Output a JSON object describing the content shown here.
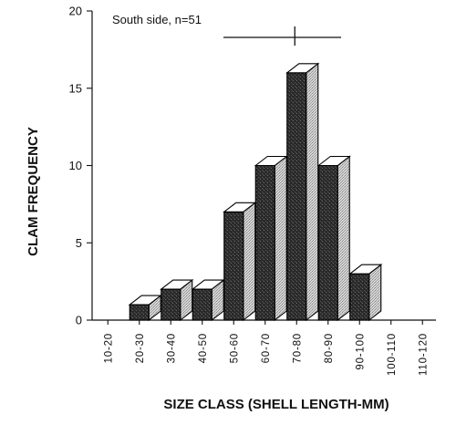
{
  "chart_data": {
    "type": "bar",
    "title": "",
    "annotation": "South side, n=51",
    "xlabel": "SIZE CLASS (SHELL LENGTH-MM)",
    "ylabel": "CLAM FREQUENCY",
    "categories": [
      "10-20",
      "20-30",
      "30-40",
      "40-50",
      "50-60",
      "60-70",
      "70-80",
      "80-90",
      "90-100",
      "100-110",
      "110-120"
    ],
    "values": [
      0,
      1,
      2,
      2,
      7,
      10,
      16,
      10,
      3,
      0,
      0
    ],
    "ylim": [
      0,
      20
    ],
    "yticks": [
      0,
      5,
      10,
      15,
      20
    ],
    "grid": false,
    "bar_style": "3d-stippled",
    "range_marker": {
      "from": "50-60",
      "to": "80-90",
      "center": "70-80"
    },
    "colors": {
      "bar_front": "#2a2a2a",
      "bar_side": "#c8c8c8",
      "bar_top": "#ffffff",
      "axis": "#111111"
    }
  }
}
